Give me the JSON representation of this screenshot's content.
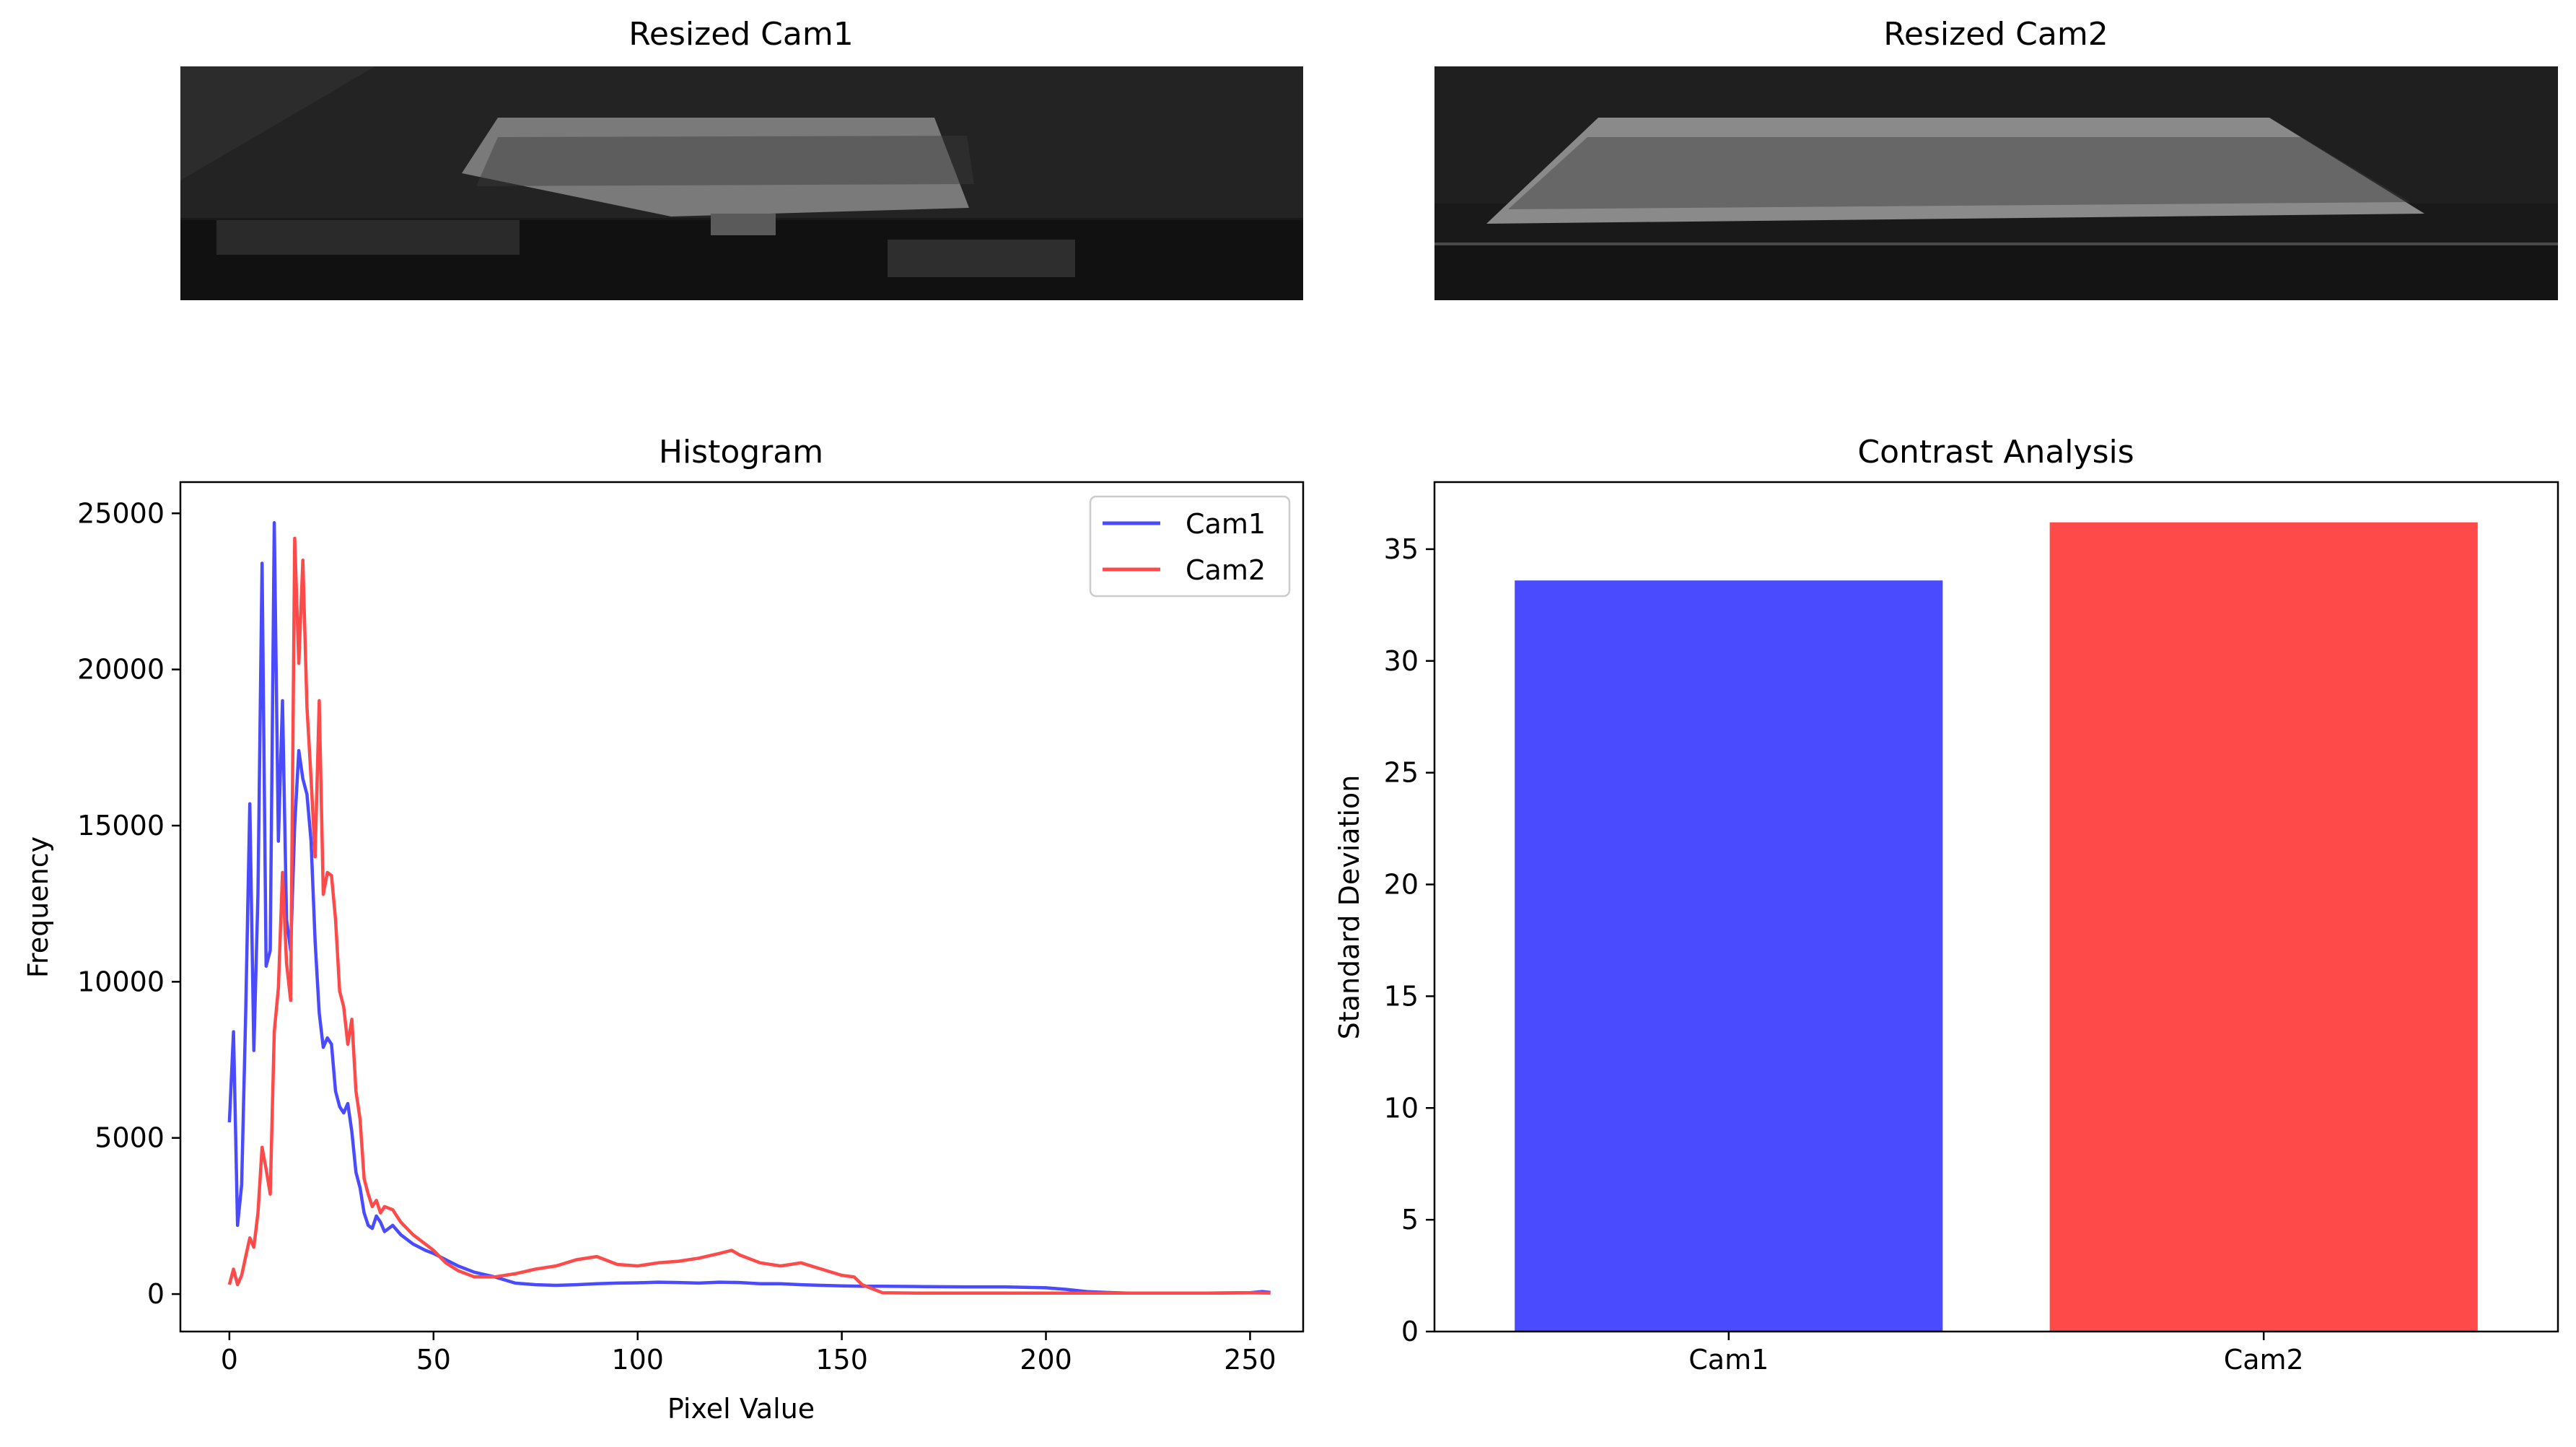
{
  "panels": {
    "cam1_image": {
      "title": "Resized Cam1"
    },
    "cam2_image": {
      "title": "Resized Cam2"
    }
  },
  "colors": {
    "cam1": "#4a4aff",
    "cam2": "#ff4a4a",
    "axes": "#000000"
  },
  "chart_data": [
    {
      "type": "line",
      "title": "Histogram",
      "xlabel": "Pixel Value",
      "ylabel": "Frequency",
      "xlim": [
        -12,
        263
      ],
      "ylim": [
        -1200,
        26000
      ],
      "xticks": [
        0,
        50,
        100,
        150,
        200,
        250
      ],
      "yticks": [
        0,
        5000,
        10000,
        15000,
        20000,
        25000
      ],
      "legend": "top-right",
      "grid": false,
      "series": [
        {
          "name": "Cam1",
          "color": "#4a4aff",
          "points": [
            [
              0,
              5500
            ],
            [
              1,
              8400
            ],
            [
              2,
              2200
            ],
            [
              3,
              3500
            ],
            [
              4,
              9000
            ],
            [
              5,
              15700
            ],
            [
              6,
              7800
            ],
            [
              7,
              12800
            ],
            [
              8,
              23400
            ],
            [
              9,
              10500
            ],
            [
              10,
              11000
            ],
            [
              11,
              24700
            ],
            [
              12,
              14500
            ],
            [
              13,
              19000
            ],
            [
              14,
              12000
            ],
            [
              15,
              11000
            ],
            [
              16,
              15000
            ],
            [
              17,
              17400
            ],
            [
              18,
              16500
            ],
            [
              19,
              16000
            ],
            [
              20,
              14500
            ],
            [
              21,
              11300
            ],
            [
              22,
              9000
            ],
            [
              23,
              7900
            ],
            [
              24,
              8200
            ],
            [
              25,
              8000
            ],
            [
              26,
              6500
            ],
            [
              27,
              6000
            ],
            [
              28,
              5800
            ],
            [
              29,
              6100
            ],
            [
              30,
              5200
            ],
            [
              31,
              3900
            ],
            [
              32,
              3400
            ],
            [
              33,
              2600
            ],
            [
              34,
              2200
            ],
            [
              35,
              2100
            ],
            [
              36,
              2500
            ],
            [
              37,
              2300
            ],
            [
              38,
              2000
            ],
            [
              40,
              2200
            ],
            [
              42,
              1900
            ],
            [
              45,
              1600
            ],
            [
              48,
              1400
            ],
            [
              50,
              1300
            ],
            [
              53,
              1100
            ],
            [
              56,
              900
            ],
            [
              60,
              700
            ],
            [
              65,
              550
            ],
            [
              70,
              350
            ],
            [
              75,
              300
            ],
            [
              80,
              280
            ],
            [
              85,
              300
            ],
            [
              90,
              330
            ],
            [
              95,
              350
            ],
            [
              100,
              360
            ],
            [
              105,
              380
            ],
            [
              110,
              370
            ],
            [
              115,
              350
            ],
            [
              120,
              380
            ],
            [
              125,
              370
            ],
            [
              130,
              330
            ],
            [
              135,
              330
            ],
            [
              140,
              300
            ],
            [
              145,
              280
            ],
            [
              150,
              260
            ],
            [
              155,
              250
            ],
            [
              160,
              250
            ],
            [
              170,
              240
            ],
            [
              180,
              230
            ],
            [
              190,
              230
            ],
            [
              200,
              200
            ],
            [
              205,
              150
            ],
            [
              210,
              80
            ],
            [
              215,
              50
            ],
            [
              220,
              30
            ],
            [
              230,
              30
            ],
            [
              240,
              30
            ],
            [
              250,
              40
            ],
            [
              253,
              80
            ],
            [
              255,
              50
            ]
          ]
        },
        {
          "name": "Cam2",
          "color": "#ff4a4a",
          "points": [
            [
              0,
              300
            ],
            [
              1,
              800
            ],
            [
              2,
              300
            ],
            [
              3,
              600
            ],
            [
              4,
              1200
            ],
            [
              5,
              1800
            ],
            [
              6,
              1500
            ],
            [
              7,
              2600
            ],
            [
              8,
              4700
            ],
            [
              9,
              4000
            ],
            [
              10,
              3200
            ],
            [
              11,
              8400
            ],
            [
              12,
              9800
            ],
            [
              13,
              13500
            ],
            [
              14,
              10600
            ],
            [
              15,
              9400
            ],
            [
              16,
              24200
            ],
            [
              17,
              20200
            ],
            [
              18,
              23500
            ],
            [
              19,
              18800
            ],
            [
              20,
              16500
            ],
            [
              21,
              14000
            ],
            [
              22,
              19000
            ],
            [
              23,
              12800
            ],
            [
              24,
              13500
            ],
            [
              25,
              13400
            ],
            [
              26,
              12000
            ],
            [
              27,
              9700
            ],
            [
              28,
              9200
            ],
            [
              29,
              8000
            ],
            [
              30,
              8800
            ],
            [
              31,
              6500
            ],
            [
              32,
              5600
            ],
            [
              33,
              3700
            ],
            [
              34,
              3200
            ],
            [
              35,
              2800
            ],
            [
              36,
              3000
            ],
            [
              37,
              2600
            ],
            [
              38,
              2800
            ],
            [
              40,
              2700
            ],
            [
              42,
              2300
            ],
            [
              45,
              1900
            ],
            [
              48,
              1600
            ],
            [
              50,
              1400
            ],
            [
              53,
              1000
            ],
            [
              56,
              750
            ],
            [
              60,
              550
            ],
            [
              65,
              550
            ],
            [
              70,
              650
            ],
            [
              75,
              800
            ],
            [
              80,
              900
            ],
            [
              85,
              1100
            ],
            [
              90,
              1200
            ],
            [
              95,
              950
            ],
            [
              100,
              900
            ],
            [
              105,
              1000
            ],
            [
              110,
              1050
            ],
            [
              115,
              1150
            ],
            [
              120,
              1300
            ],
            [
              123,
              1400
            ],
            [
              125,
              1250
            ],
            [
              130,
              1000
            ],
            [
              135,
              900
            ],
            [
              140,
              1000
            ],
            [
              145,
              800
            ],
            [
              150,
              600
            ],
            [
              153,
              550
            ],
            [
              155,
              300
            ],
            [
              160,
              40
            ],
            [
              170,
              30
            ],
            [
              180,
              30
            ],
            [
              190,
              30
            ],
            [
              200,
              30
            ],
            [
              210,
              30
            ],
            [
              220,
              30
            ],
            [
              230,
              30
            ],
            [
              240,
              30
            ],
            [
              250,
              40
            ],
            [
              255,
              30
            ]
          ]
        }
      ]
    },
    {
      "type": "bar",
      "title": "Contrast Analysis",
      "xlabel": "",
      "ylabel": "Standard Deviation",
      "categories": [
        "Cam1",
        "Cam2"
      ],
      "values": [
        33.6,
        36.2
      ],
      "colors": [
        "#4a4aff",
        "#ff4a4a"
      ],
      "ylim": [
        0,
        38
      ],
      "yticks": [
        0,
        5,
        10,
        15,
        20,
        25,
        30,
        35
      ]
    }
  ]
}
